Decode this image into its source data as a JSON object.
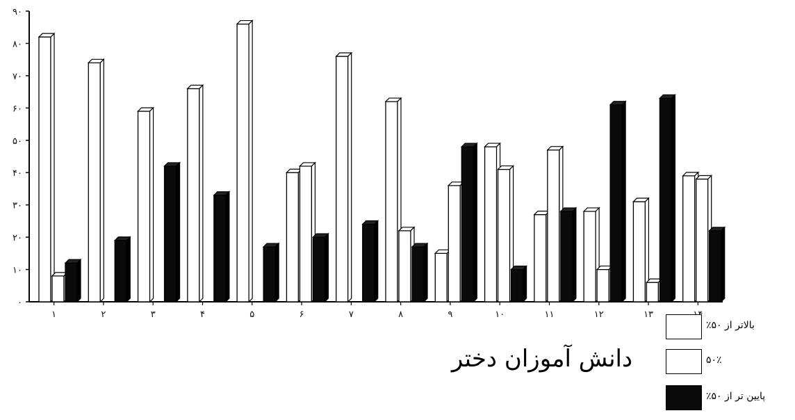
{
  "chart_data": {
    "type": "bar",
    "title": "دانش آموزان دختر",
    "xlabel": "",
    "ylabel": "",
    "ylim": [
      0,
      90
    ],
    "y_ticks": [
      "۰",
      "۱۰",
      "۲۰",
      "۳۰",
      "۴۰",
      "۵۰",
      "۶۰",
      "۷۰",
      "۸۰",
      "۹۰"
    ],
    "categories": [
      "۱",
      "۲",
      "۳",
      "۴",
      "۵",
      "۶",
      "۷",
      "۸",
      "۹",
      "۱۰",
      "۱۱",
      "۱۲",
      "۱۳",
      "۱۴"
    ],
    "series": [
      {
        "name": "بالاتر از ۵۰٪",
        "color": "#ffffff",
        "values": [
          82,
          74,
          59,
          66,
          86,
          40,
          76,
          62,
          15,
          48,
          27,
          28,
          31,
          39
        ]
      },
      {
        "name": "۵۰٪",
        "color": "#ffffff",
        "values": [
          8,
          0,
          0,
          0,
          0,
          42,
          0,
          22,
          36,
          41,
          47,
          10,
          6,
          38
        ]
      },
      {
        "name": "پایین تر از ۵۰٪",
        "color": "#0a0a0a",
        "values": [
          12,
          19,
          42,
          33,
          17,
          20,
          24,
          17,
          48,
          10,
          28,
          61,
          63,
          22
        ]
      }
    ],
    "legend_placement": "bottom-right",
    "grid": false
  }
}
